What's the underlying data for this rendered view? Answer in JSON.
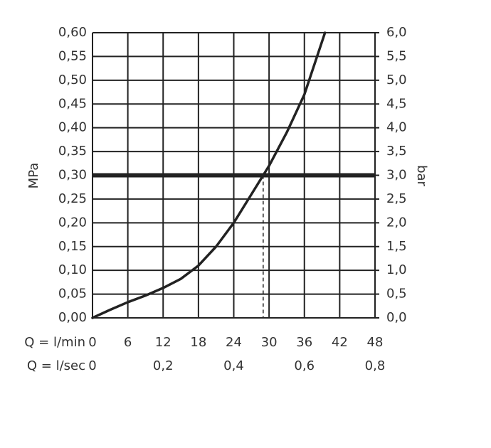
{
  "chart_data": {
    "type": "line",
    "y_label": "MPa",
    "y2_label": "bar",
    "x_label": "Q = l/min",
    "x2_label": "Q = l/sec",
    "x": [
      0,
      3,
      6,
      9,
      12,
      15,
      18,
      21,
      24,
      27,
      30,
      33,
      36,
      39.5
    ],
    "series": [
      {
        "color": "#222222",
        "values": [
          0,
          0.017,
          0.033,
          0.047,
          0.063,
          0.082,
          0.11,
          0.15,
          0.2,
          0.26,
          0.32,
          0.39,
          0.47,
          0.6
        ]
      }
    ],
    "xlim": [
      0,
      48
    ],
    "xticks": [
      0,
      6,
      12,
      18,
      24,
      30,
      36,
      42,
      48
    ],
    "x2lim": [
      0,
      0.8
    ],
    "x2ticks": [
      0,
      {
        "value": 0.2,
        "label": "0,2"
      },
      {
        "value": 0.4,
        "label": "0,4"
      },
      {
        "value": 0.6,
        "label": "0,6"
      },
      {
        "value": 0.8,
        "label": "0,8"
      }
    ],
    "ylim": [
      0,
      0.6
    ],
    "yticks": [
      {
        "value": 0,
        "label": "0,00"
      },
      {
        "value": 0.05,
        "label": "0,05"
      },
      {
        "value": 0.1,
        "label": "0,10"
      },
      {
        "value": 0.15,
        "label": "0,15"
      },
      {
        "value": 0.2,
        "label": "0,20"
      },
      {
        "value": 0.25,
        "label": "0,25"
      },
      {
        "value": 0.3,
        "label": "0,30"
      },
      {
        "value": 0.35,
        "label": "0,35"
      },
      {
        "value": 0.4,
        "label": "0,40"
      },
      {
        "value": 0.45,
        "label": "0,45"
      },
      {
        "value": 0.5,
        "label": "0,50"
      },
      {
        "value": 0.55,
        "label": "0,55"
      },
      {
        "value": 0.6,
        "label": "0,60"
      }
    ],
    "y2lim": [
      0,
      6
    ],
    "y2ticks": [
      {
        "value": 0,
        "label": "0,0"
      },
      {
        "value": 0.5,
        "label": "0,5"
      },
      {
        "value": 1,
        "label": "1,0"
      },
      {
        "value": 1.5,
        "label": "1,5"
      },
      {
        "value": 2,
        "label": "2,0"
      },
      {
        "value": 2.5,
        "label": "2,5"
      },
      {
        "value": 3,
        "label": "3,0"
      },
      {
        "value": 3.5,
        "label": "3,5"
      },
      {
        "value": 4,
        "label": "4,0"
      },
      {
        "value": 4.5,
        "label": "4,5"
      },
      {
        "value": 5,
        "label": "5,0"
      },
      {
        "value": 5.5,
        "label": "5,5"
      },
      {
        "value": 6,
        "label": "6,0"
      }
    ],
    "reference_y": 0.3,
    "reference_x": 29,
    "grid": true
  }
}
